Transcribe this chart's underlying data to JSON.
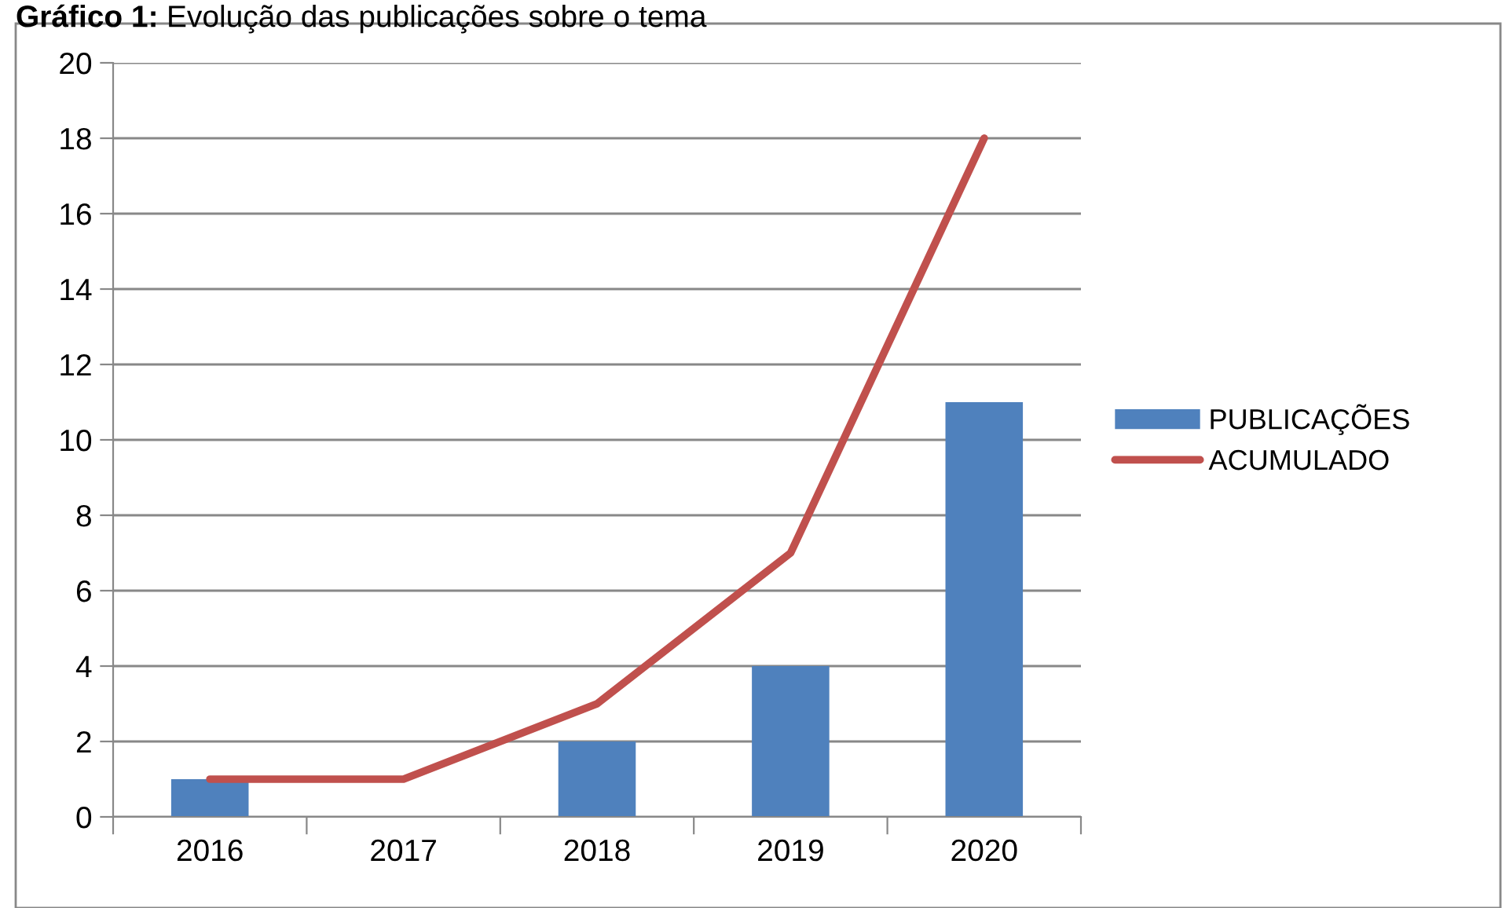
{
  "chart_data": {
    "type": "bar",
    "title": "Gráfico 1: Evolução das publicações sobre o tema",
    "categories": [
      "2016",
      "2017",
      "2018",
      "2019",
      "2020"
    ],
    "series": [
      {
        "name": "PUBLICAÇÕES",
        "color": "#4f81bd",
        "values": [
          1,
          0,
          2,
          4,
          11
        ]
      },
      {
        "name": "ACUMULADO",
        "type": "line",
        "color": "#c0504d",
        "values": [
          1,
          1,
          3,
          7,
          18
        ]
      }
    ],
    "ylim": [
      0,
      20
    ],
    "yticks": [
      0,
      2,
      4,
      6,
      8,
      10,
      12,
      14,
      16,
      18,
      20
    ],
    "grid": "y",
    "legend": "right",
    "marker": "none",
    "line_style": "solid"
  }
}
